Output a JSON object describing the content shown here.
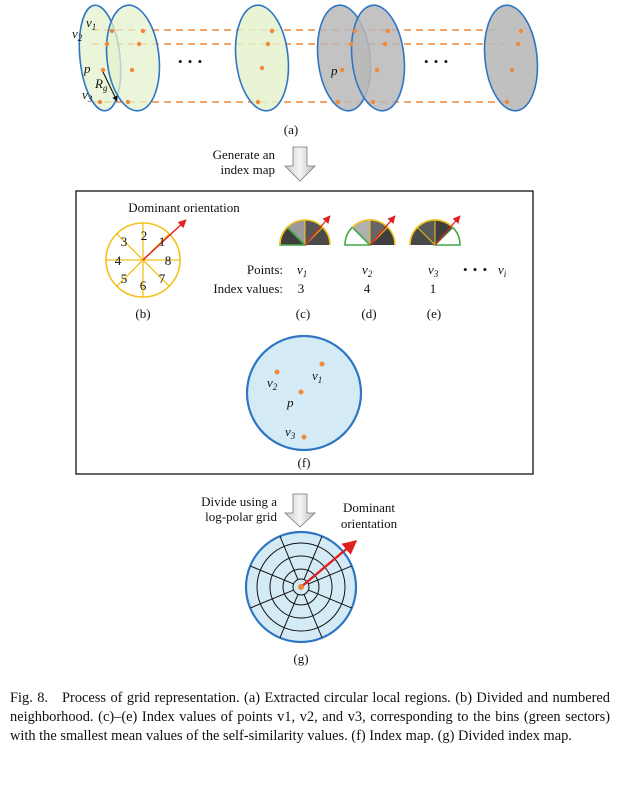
{
  "panel_a": {
    "v1": "v",
    "v1_sub": "1",
    "v2": "v",
    "v2_sub": "2",
    "v3": "v",
    "v3_sub": "3",
    "p": "p",
    "rg": "R",
    "rg_sub": "g",
    "p_right": "p",
    "dots_left": "• • •",
    "dots_right": "• • •",
    "label": "(a)"
  },
  "arrow1": {
    "line1": "Generate an",
    "line2": "index map"
  },
  "panel_b": {
    "title": "Dominant orientation",
    "numbers": [
      "1",
      "2",
      "3",
      "4",
      "5",
      "6",
      "7",
      "8"
    ],
    "label": "(b)"
  },
  "points_row": {
    "points_label": "Points:",
    "index_label": "Index values:",
    "c_point": "v",
    "c_sub": "1",
    "c_index": "3",
    "c_label": "(c)",
    "d_point": "v",
    "d_sub": "2",
    "d_index": "4",
    "d_label": "(d)",
    "e_point": "v",
    "e_sub": "3",
    "e_index": "1",
    "e_label": "(e)",
    "dots": "• • •",
    "vi": "v",
    "vi_sub": "i"
  },
  "panel_f": {
    "v1": "v",
    "v1_sub": "1",
    "v2": "v",
    "v2_sub": "2",
    "v3": "v",
    "v3_sub": "3",
    "p": "p",
    "label": "(f)"
  },
  "arrow2": {
    "line1": "Divide using a",
    "line2": "log-polar grid"
  },
  "panel_g": {
    "dom1": "Dominant",
    "dom2": "orientation",
    "label": "(g)"
  },
  "caption": {
    "fig_no": "Fig. 8.",
    "text": "Process of grid representation. (a) Extracted circular local regions. (b) Divided and numbered neighborhood. (c)–(e) Index values of points v1, v2, and v3, corresponding to the bins (green sectors) with the smallest mean values of the self-similarity values. (f) Index map. (g) Divided index map."
  },
  "colors": {
    "green_fill": "#e4f2cd",
    "gray_fill": "#b9b9b9",
    "blue_stroke": "#2e75c4",
    "orange": "#ef8a3a",
    "sky_fill": "#d4ebf6",
    "yellow": "#f2c21b",
    "red": "#e02020",
    "sector_green": "#43a846"
  }
}
